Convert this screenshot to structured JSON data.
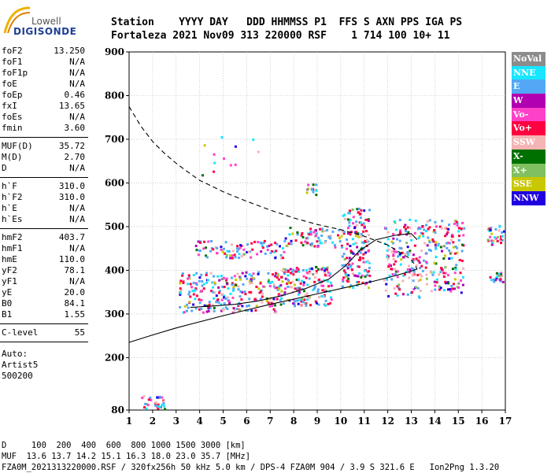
{
  "logo": {
    "line1": "Lowell",
    "line2": "DIGISONDE"
  },
  "header": {
    "row1": "Station    YYYY DAY   DDD HHMMSS P1  FFS S AXN PPS IGA PS",
    "row2": "Fortaleza 2021 Nov09 313 220000 RSF    1 714 100 10+ 11"
  },
  "params": {
    "group1": [
      {
        "label": "foF2",
        "value": "13.250"
      },
      {
        "label": "foF1",
        "value": "N/A"
      },
      {
        "label": "foF1p",
        "value": "N/A"
      },
      {
        "label": "foE",
        "value": "N/A"
      },
      {
        "label": "foEp",
        "value": "0.46"
      },
      {
        "label": "fxI",
        "value": "13.65"
      },
      {
        "label": "foEs",
        "value": "N/A"
      },
      {
        "label": "fmin",
        "value": "3.60"
      }
    ],
    "group2": [
      {
        "label": "MUF(D)",
        "value": "35.72"
      },
      {
        "label": "M(D)",
        "value": "2.70"
      },
      {
        "label": "D",
        "value": "N/A"
      }
    ],
    "group3": [
      {
        "label": "h`F",
        "value": "310.0"
      },
      {
        "label": "h`F2",
        "value": "310.0"
      },
      {
        "label": "h`E",
        "value": "N/A"
      },
      {
        "label": "h`Es",
        "value": "N/A"
      }
    ],
    "group4": [
      {
        "label": "hmF2",
        "value": "403.7"
      },
      {
        "label": "hmF1",
        "value": "N/A"
      },
      {
        "label": "hmE",
        "value": "110.0"
      },
      {
        "label": "yF2",
        "value": "78.1"
      },
      {
        "label": "yF1",
        "value": "N/A"
      },
      {
        "label": "yE",
        "value": "20.0"
      },
      {
        "label": "B0",
        "value": "84.1"
      },
      {
        "label": "B1",
        "value": "1.55"
      }
    ],
    "group5": [
      {
        "label": "C-level",
        "value": "55"
      }
    ],
    "auto_lines": [
      "Auto:",
      "Artist5",
      "500200"
    ]
  },
  "legend": [
    {
      "label": "NoVal",
      "color": "#8c8c8c"
    },
    {
      "label": "NNE",
      "color": "#18e6ff"
    },
    {
      "label": "E",
      "color": "#52a8f5"
    },
    {
      "label": "W",
      "color": "#b000b0"
    },
    {
      "label": "Vo-",
      "color": "#ff40c8"
    },
    {
      "label": "Vo+",
      "color": "#ff0040"
    },
    {
      "label": "SSW",
      "color": "#f5b4b4"
    },
    {
      "label": "X-",
      "color": "#007000"
    },
    {
      "label": "X+",
      "color": "#80c060"
    },
    {
      "label": "SSE",
      "color": "#c8c800"
    },
    {
      "label": "NNW",
      "color": "#2000e0"
    }
  ],
  "chart_data": {
    "type": "scatter",
    "xlim": [
      1,
      17
    ],
    "ylim": [
      80,
      900
    ],
    "x_ticks": [
      1,
      2,
      3,
      4,
      5,
      6,
      7,
      8,
      9,
      10,
      11,
      12,
      13,
      14,
      15,
      16,
      17
    ],
    "y_ticks": [
      80,
      200,
      300,
      400,
      500,
      600,
      700,
      800,
      900
    ],
    "grid": true,
    "legend_position": "right",
    "series": [
      {
        "style": "dashed",
        "points": [
          [
            1,
            775
          ],
          [
            1.5,
            730
          ],
          [
            2,
            695
          ],
          [
            2.5,
            668
          ],
          [
            3,
            645
          ],
          [
            3.5,
            625
          ],
          [
            4,
            606
          ],
          [
            5,
            580
          ],
          [
            6,
            558
          ],
          [
            7,
            538
          ],
          [
            8,
            520
          ],
          [
            9,
            505
          ],
          [
            10,
            493
          ],
          [
            11,
            478
          ],
          [
            12,
            458
          ],
          [
            13,
            425
          ],
          [
            13.25,
            403
          ]
        ]
      },
      {
        "style": "solid",
        "points": [
          [
            1,
            235
          ],
          [
            2,
            252
          ],
          [
            3,
            268
          ],
          [
            4,
            282
          ],
          [
            5,
            296
          ],
          [
            6,
            309
          ],
          [
            7,
            322
          ],
          [
            8,
            334
          ],
          [
            9,
            346
          ],
          [
            10,
            358
          ],
          [
            11,
            370
          ],
          [
            12,
            383
          ],
          [
            13,
            398
          ],
          [
            13.25,
            403
          ]
        ]
      },
      {
        "style": "solid",
        "points": [
          [
            3.6,
            315
          ],
          [
            4.5,
            318
          ],
          [
            5.5,
            322
          ],
          [
            6.5,
            330
          ],
          [
            7.5,
            342
          ],
          [
            8.5,
            358
          ],
          [
            9.5,
            380
          ],
          [
            10.2,
            410
          ],
          [
            10.8,
            445
          ],
          [
            11.5,
            470
          ],
          [
            12.3,
            480
          ],
          [
            13,
            484
          ],
          [
            13.25,
            470
          ]
        ]
      }
    ],
    "trace_regions": [
      {
        "x": [
          3.1,
          7.5
        ],
        "y": [
          305,
          400
        ],
        "density": 260
      },
      {
        "x": [
          3.8,
          7.6
        ],
        "y": [
          430,
          470
        ],
        "density": 90
      },
      {
        "x": [
          7.4,
          9.6
        ],
        "y": [
          320,
          410
        ],
        "density": 160
      },
      {
        "x": [
          7.6,
          10.0
        ],
        "y": [
          455,
          500
        ],
        "density": 70
      },
      {
        "x": [
          10.0,
          11.2
        ],
        "y": [
          360,
          545
        ],
        "density": 170
      },
      {
        "x": [
          11.8,
          13.4
        ],
        "y": [
          340,
          520
        ],
        "density": 150
      },
      {
        "x": [
          13.4,
          15.2
        ],
        "y": [
          350,
          520
        ],
        "density": 150
      },
      {
        "x": [
          16.2,
          16.9
        ],
        "y": [
          460,
          505
        ],
        "density": 30
      },
      {
        "x": [
          16.3,
          16.9
        ],
        "y": [
          375,
          400
        ],
        "density": 20
      },
      {
        "x": [
          1.5,
          2.5
        ],
        "y": [
          82,
          115
        ],
        "density": 30
      },
      {
        "x": [
          8.5,
          9.0
        ],
        "y": [
          575,
          600
        ],
        "density": 15
      },
      {
        "x": [
          4.0,
          6.5
        ],
        "y": [
          620,
          720
        ],
        "density": 12
      }
    ]
  },
  "footer": {
    "line1": "D     100  200  400  600  800 1000 1500 3000 [km]",
    "line2": "MUF  13.6 13.7 14.2 15.1 16.3 18.0 23.0 35.7 [MHz]",
    "line3": "FZA0M_2021313220000.RSF / 320fx256h 50 kHz 5.0 km / DPS-4 FZA0M 904 / 3.9 S 321.6 E   Ion2Png 1.3.20"
  }
}
